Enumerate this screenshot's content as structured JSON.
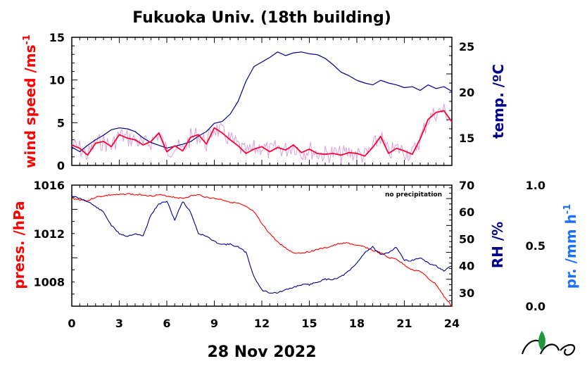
{
  "colors": {
    "wind": "#ff0033",
    "wind_raw": "#cc77cc",
    "temp": "#00008b",
    "press": "#ff0000",
    "rh": "#00008b",
    "precip": "#1e6fff",
    "logo_leaf": "#1a9a3a"
  },
  "chart_data": [
    {
      "type": "line",
      "title": "Fukuoka Univ. (18th building)",
      "xlabel": "28 Nov 2022",
      "x_ticks": [
        "0",
        "3",
        "6",
        "9",
        "12",
        "15",
        "18",
        "21",
        "24"
      ],
      "xlim": [
        0,
        24
      ],
      "y_left": {
        "label": "wind speed /ms",
        "label_sup": "-1",
        "ylim": [
          0,
          15
        ],
        "ticks": [
          "0",
          "5",
          "10",
          "15"
        ]
      },
      "y_right": {
        "label": "temp. /ºC",
        "ylim": [
          12,
          26
        ],
        "ticks": [
          "15",
          "20",
          "25"
        ]
      },
      "series": [
        {
          "name": "wind speed",
          "axis": "left",
          "x": [
            0,
            0.5,
            1,
            1.5,
            2,
            2.5,
            3,
            3.5,
            4,
            4.5,
            5,
            5.5,
            6,
            6.5,
            7,
            7.5,
            8,
            8.5,
            9,
            9.5,
            10,
            10.5,
            11,
            11.5,
            12,
            12.5,
            13,
            13.5,
            14,
            14.5,
            15,
            15.5,
            16,
            16.5,
            17,
            17.5,
            18,
            18.5,
            19,
            19.5,
            20,
            20.5,
            21,
            21.5,
            22,
            22.5,
            23,
            23.5,
            24
          ],
          "values": [
            2.4,
            2.0,
            1.2,
            2.6,
            2.8,
            2.2,
            3.6,
            3.2,
            3.0,
            2.4,
            2.8,
            3.8,
            1.6,
            2.3,
            1.7,
            3.3,
            3.6,
            2.5,
            4.4,
            3.8,
            3.0,
            2.3,
            1.4,
            1.9,
            2.2,
            1.6,
            2.1,
            1.8,
            2.4,
            1.5,
            1.9,
            1.4,
            1.3,
            1.4,
            1.2,
            1.5,
            1.4,
            1.1,
            2.1,
            3.4,
            1.4,
            2.0,
            1.7,
            1.3,
            3.1,
            5.4,
            6.2,
            6.4,
            5.1
          ]
        },
        {
          "name": "temperature",
          "axis": "right",
          "x": [
            0,
            0.5,
            1,
            1.5,
            2,
            2.5,
            3,
            3.5,
            4,
            4.5,
            5,
            5.5,
            6,
            6.5,
            7,
            7.5,
            8,
            8.5,
            9,
            9.5,
            10,
            10.5,
            11,
            11.5,
            12,
            12.5,
            13,
            13.5,
            14,
            14.5,
            15,
            15.5,
            16,
            16.5,
            17,
            17.5,
            18,
            18.5,
            19,
            19.5,
            20,
            20.5,
            21,
            21.5,
            22,
            22.5,
            23,
            23.5,
            24
          ],
          "values": [
            14.0,
            13.5,
            14.2,
            14.8,
            15.3,
            15.9,
            16.1,
            16.0,
            15.7,
            15.0,
            14.5,
            14.2,
            13.9,
            14.1,
            14.3,
            14.6,
            15.2,
            15.7,
            16.6,
            16.8,
            17.6,
            19.0,
            21.2,
            22.8,
            23.3,
            23.8,
            24.4,
            24.0,
            24.3,
            24.4,
            24.2,
            24.1,
            23.7,
            23.0,
            22.2,
            21.8,
            21.3,
            21.0,
            20.8,
            21.3,
            21.0,
            20.8,
            20.5,
            20.6,
            20.2,
            20.8,
            20.4,
            20.6,
            20.1
          ]
        }
      ]
    },
    {
      "type": "line",
      "x_ticks": [
        "0",
        "3",
        "6",
        "9",
        "12",
        "15",
        "18",
        "21",
        "24"
      ],
      "xlim": [
        0,
        24
      ],
      "annotation": "no precipitation",
      "y_left": {
        "label": "press. /hPa",
        "ylim": [
          1006,
          1016
        ],
        "ticks": [
          "1016",
          "1012",
          "1008"
        ]
      },
      "y_right": {
        "label": "RH /%",
        "ylim": [
          25,
          70
        ],
        "ticks": [
          "70",
          "60",
          "50",
          "40",
          "30"
        ]
      },
      "y_right2": {
        "label": "pr. /mm h",
        "label_sup": "-1",
        "ylim": [
          0,
          1
        ],
        "ticks": [
          "1.0",
          "0.5",
          "0.0"
        ]
      },
      "series": [
        {
          "name": "pressure",
          "axis": "left",
          "x": [
            0,
            0.5,
            1,
            1.5,
            2,
            2.5,
            3,
            3.5,
            4,
            4.5,
            5,
            5.5,
            6,
            6.5,
            7,
            7.5,
            8,
            8.5,
            9,
            9.5,
            10,
            10.5,
            11,
            11.5,
            12,
            12.5,
            13,
            13.5,
            14,
            14.5,
            15,
            15.5,
            16,
            16.5,
            17,
            17.5,
            18,
            18.5,
            19,
            19.5,
            20,
            20.5,
            21,
            21.5,
            22,
            22.5,
            23,
            23.5,
            24
          ],
          "values": [
            1014.9,
            1014.8,
            1014.7,
            1015.0,
            1015.1,
            1015.2,
            1015.2,
            1015.3,
            1015.2,
            1015.2,
            1015.1,
            1015.2,
            1015.1,
            1015.0,
            1014.9,
            1015.1,
            1015.2,
            1015.0,
            1014.9,
            1014.8,
            1014.6,
            1014.5,
            1014.2,
            1013.8,
            1012.8,
            1012.0,
            1011.3,
            1010.8,
            1010.4,
            1010.4,
            1010.5,
            1010.7,
            1010.8,
            1011.0,
            1011.2,
            1011.2,
            1011.0,
            1010.9,
            1010.6,
            1010.4,
            1010.0,
            1009.9,
            1009.4,
            1009.0,
            1008.9,
            1008.3,
            1007.8,
            1006.8,
            1006.0
          ]
        },
        {
          "name": "RH",
          "axis": "right",
          "x": [
            0,
            0.5,
            1,
            1.5,
            2,
            2.5,
            3,
            3.5,
            4,
            4.5,
            5,
            5.5,
            6,
            6.5,
            7,
            7.5,
            8,
            8.5,
            9,
            9.5,
            10,
            10.5,
            11,
            11.5,
            12,
            12.5,
            13,
            13.5,
            14,
            14.5,
            15,
            15.5,
            16,
            16.5,
            17,
            17.5,
            18,
            18.5,
            19,
            19.5,
            20,
            20.5,
            21,
            21.5,
            22,
            22.5,
            23,
            23.5,
            24
          ],
          "values": [
            66,
            65,
            64,
            62,
            60,
            55,
            52,
            51,
            52,
            51,
            59,
            63,
            64,
            57,
            64,
            60,
            52,
            51,
            49,
            48,
            48,
            47,
            45,
            36,
            31,
            30,
            30,
            31,
            32,
            33,
            33,
            34,
            35,
            35,
            36,
            38,
            41,
            45,
            47,
            44,
            45,
            47,
            42,
            42,
            43,
            41,
            40,
            38,
            40
          ]
        },
        {
          "name": "precipitation",
          "axis": "right2",
          "values": []
        }
      ]
    }
  ]
}
